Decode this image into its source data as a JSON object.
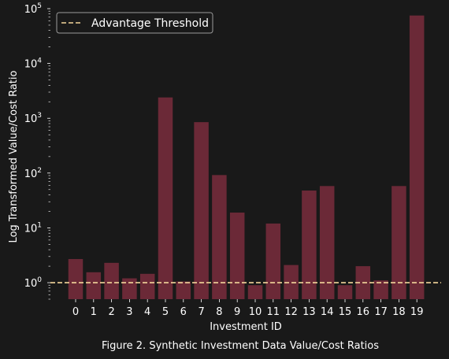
{
  "chart_data": {
    "type": "bar",
    "categories": [
      "0",
      "1",
      "2",
      "3",
      "4",
      "5",
      "6",
      "7",
      "8",
      "9",
      "10",
      "11",
      "12",
      "13",
      "14",
      "15",
      "16",
      "17",
      "18",
      "19"
    ],
    "values": [
      2.7,
      1.55,
      2.3,
      1.2,
      1.45,
      2400,
      1.05,
      850,
      92,
      19,
      0.9,
      12,
      2.1,
      48,
      58,
      0.9,
      2.0,
      1.1,
      58,
      75000
    ],
    "xlabel": "Investment ID",
    "ylabel": "Log Transformed Value/Cost Ratio",
    "caption": "Figure 2. Synthetic Investment Data Value/Cost Ratios",
    "yscale": "log",
    "ylim": [
      0.5,
      100000
    ],
    "y_ticks": [
      {
        "value": 1,
        "base": "10",
        "exp": "0"
      },
      {
        "value": 10,
        "base": "10",
        "exp": "1"
      },
      {
        "value": 100,
        "base": "10",
        "exp": "2"
      },
      {
        "value": 1000,
        "base": "10",
        "exp": "3"
      },
      {
        "value": 10000,
        "base": "10",
        "exp": "4"
      },
      {
        "value": 100000,
        "base": "10",
        "exp": "5"
      }
    ],
    "threshold": {
      "value": 1,
      "label": "Advantage Threshold"
    },
    "legend": {
      "position": "top-left",
      "entries": [
        "Advantage Threshold"
      ]
    },
    "grid": false
  },
  "colors": {
    "background": "#191919",
    "bar": "#6b2937",
    "threshold": "#f4d59b",
    "text": "#ffffff",
    "legend_border": "#9a9a9a"
  }
}
